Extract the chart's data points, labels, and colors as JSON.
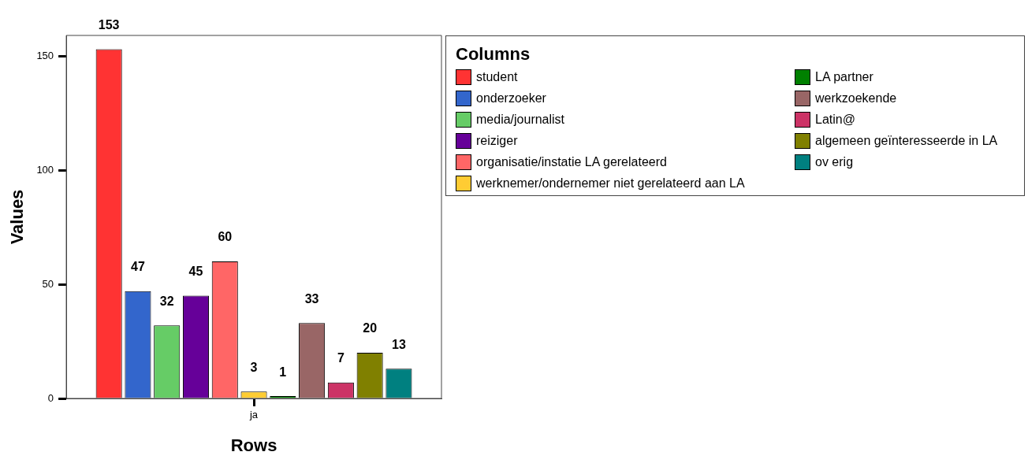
{
  "chart_data": {
    "type": "bar",
    "xlabel": "Rows",
    "ylabel": "Values",
    "legend_title": "Columns",
    "categories": [
      "ja"
    ],
    "series": [
      {
        "name": "student",
        "color": "#ff3333",
        "values": [
          153
        ]
      },
      {
        "name": "onderzoeker",
        "color": "#3366cc",
        "values": [
          47
        ]
      },
      {
        "name": "media/journalist",
        "color": "#66cc66",
        "values": [
          32
        ]
      },
      {
        "name": "reiziger",
        "color": "#660099",
        "values": [
          45
        ]
      },
      {
        "name": "organisatie/instatie LA gerelateerd",
        "color": "#ff6666",
        "values": [
          60
        ]
      },
      {
        "name": "werknemer/ondernemer niet gerelateerd aan LA",
        "color": "#ffcc33",
        "values": [
          3
        ]
      },
      {
        "name": "LA partner",
        "color": "#008000",
        "values": [
          1
        ]
      },
      {
        "name": "werkzoekende",
        "color": "#996666",
        "values": [
          33
        ]
      },
      {
        "name": "Latin@",
        "color": "#cc3366",
        "values": [
          7
        ]
      },
      {
        "name": "algemeen geïnteresseerde in LA",
        "color": "#808000",
        "values": [
          20
        ]
      },
      {
        "name": "ov erig",
        "color": "#008080",
        "values": [
          13
        ]
      }
    ],
    "ylim": [
      0,
      159
    ],
    "yticks": [
      0,
      50,
      100,
      150
    ],
    "grid": false,
    "legend": "right",
    "data_labels": true
  }
}
